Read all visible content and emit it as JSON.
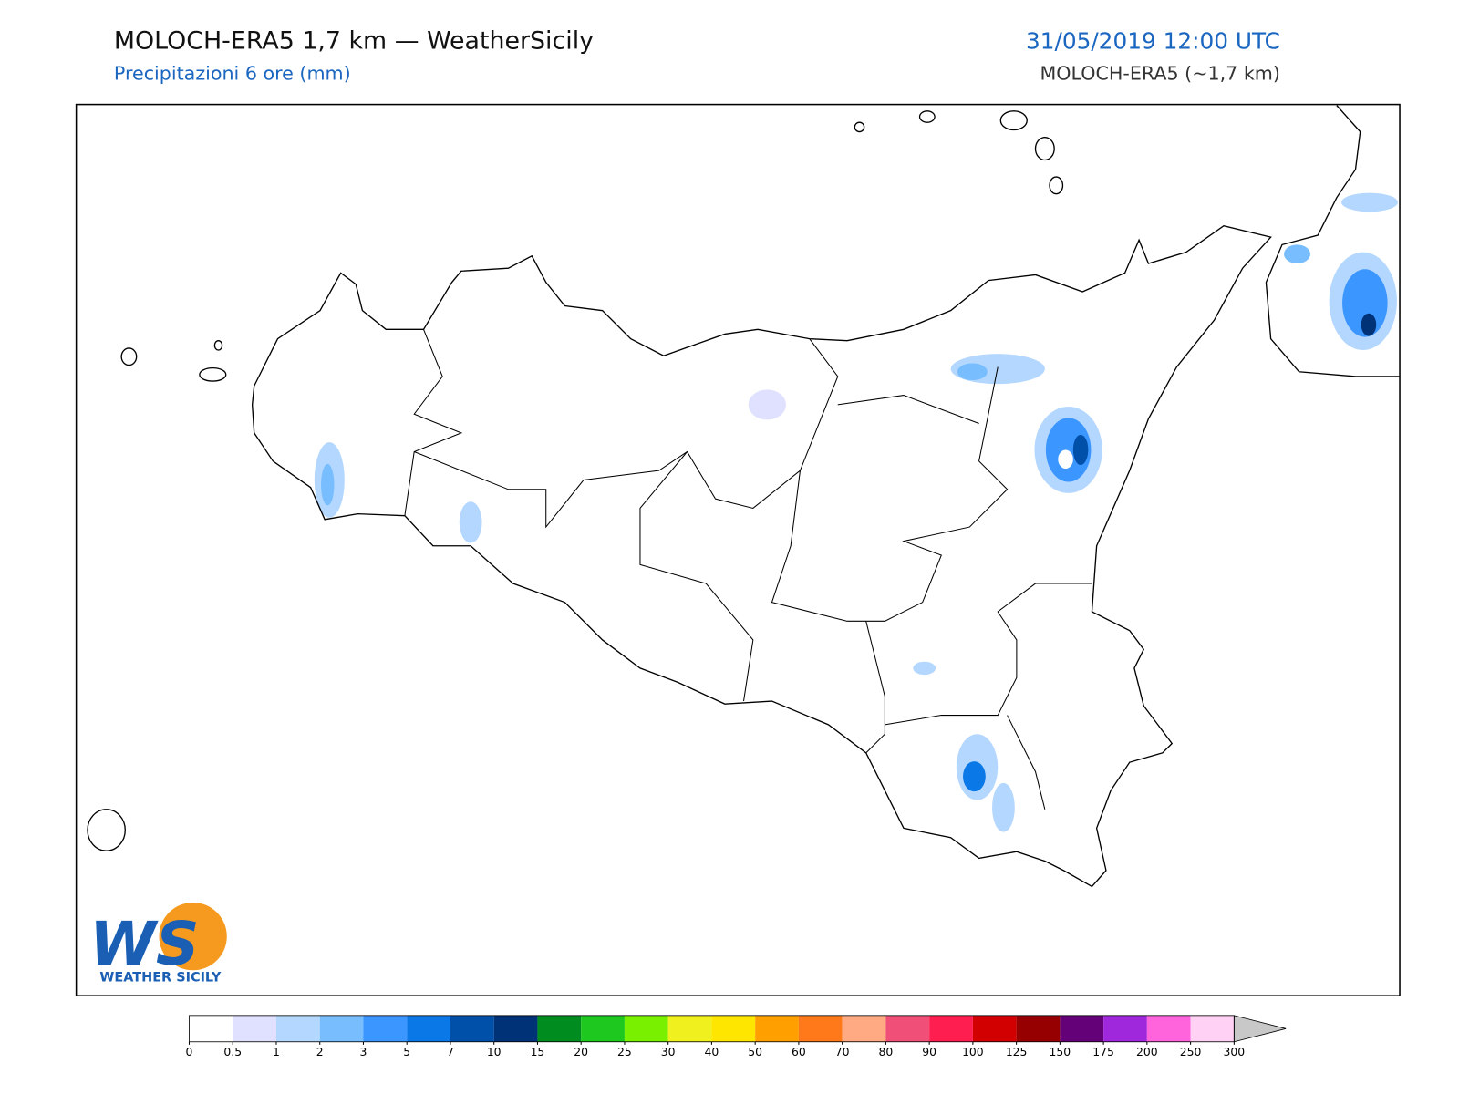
{
  "header": {
    "title": "MOLOCH-ERA5 1,7 km — WeatherSicily",
    "subtitle": "Precipitazioni 6 ore (mm)",
    "datetime": "31/05/2019 12:00 UTC",
    "model": "MOLOCH-ERA5 (~1,7 km)"
  },
  "logo": {
    "mark": "WS",
    "text": "WEATHER SICILY"
  },
  "colorbar": {
    "levels": [
      0,
      0.5,
      1,
      2,
      3,
      5,
      7,
      10,
      15,
      20,
      25,
      30,
      40,
      50,
      60,
      70,
      80,
      90,
      100,
      125,
      150,
      175,
      200,
      250,
      300
    ],
    "colors": [
      "#ffffff",
      "#e0e0ff",
      "#b4d7ff",
      "#78beff",
      "#3c96ff",
      "#0a78e6",
      "#0050aa",
      "#003278",
      "#008c1e",
      "#1ec81e",
      "#78f000",
      "#f0f01e",
      "#ffe600",
      "#ff9f00",
      "#ff7819",
      "#ffaa82",
      "#f05078",
      "#ff1e50",
      "#d20000",
      "#960000",
      "#640078",
      "#a028dc",
      "#ff64dc",
      "#ffd2f5"
    ],
    "over_color": "#c8c8c8"
  }
}
